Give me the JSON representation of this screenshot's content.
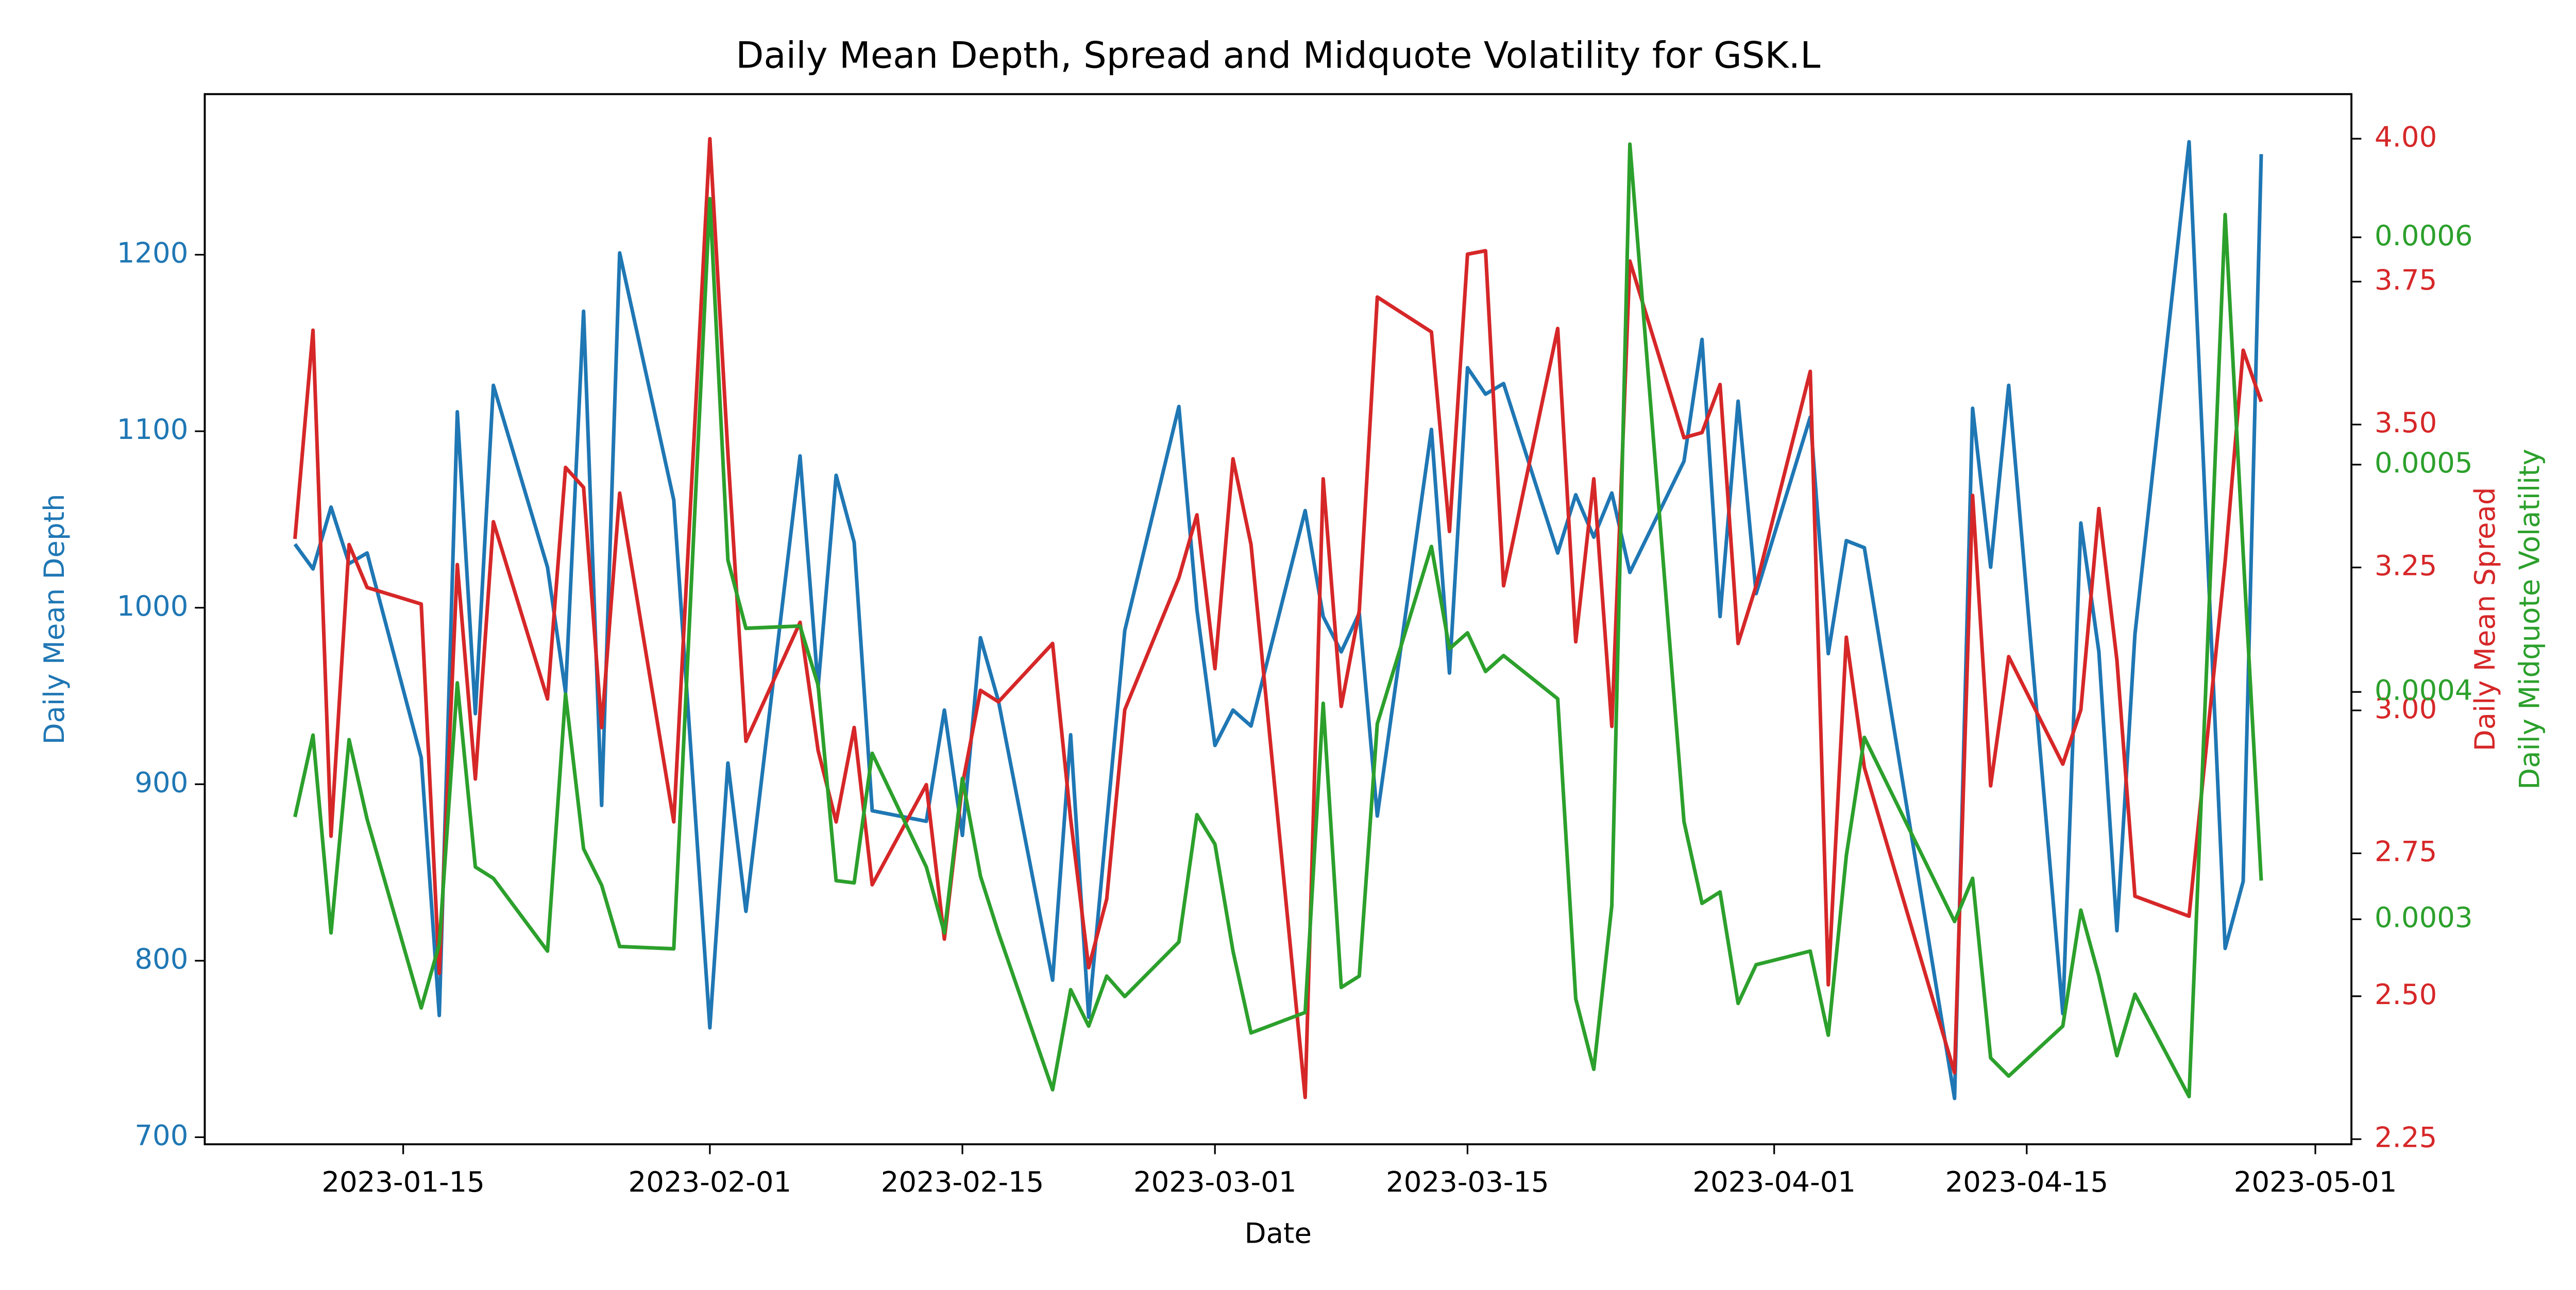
{
  "chart_data": {
    "type": "line",
    "title": "Daily Mean Depth, Spread and Midquote Volatility for GSK.L",
    "xlabel": "Date",
    "ylabel": "Daily Mean Depth",
    "y2label": "Daily Mean Spread",
    "y3label": "Daily Midquote Volatility",
    "x": [
      "2023-01-09",
      "2023-01-10",
      "2023-01-11",
      "2023-01-12",
      "2023-01-13",
      "2023-01-16",
      "2023-01-17",
      "2023-01-18",
      "2023-01-19",
      "2023-01-20",
      "2023-01-23",
      "2023-01-24",
      "2023-01-25",
      "2023-01-26",
      "2023-01-27",
      "2023-01-30",
      "2023-02-01",
      "2023-02-02",
      "2023-02-03",
      "2023-02-06",
      "2023-02-07",
      "2023-02-08",
      "2023-02-09",
      "2023-02-10",
      "2023-02-13",
      "2023-02-14",
      "2023-02-15",
      "2023-02-16",
      "2023-02-17",
      "2023-02-20",
      "2023-02-21",
      "2023-02-22",
      "2023-02-23",
      "2023-02-24",
      "2023-02-27",
      "2023-02-28",
      "2023-03-01",
      "2023-03-02",
      "2023-03-03",
      "2023-03-06",
      "2023-03-07",
      "2023-03-08",
      "2023-03-09",
      "2023-03-10",
      "2023-03-13",
      "2023-03-14",
      "2023-03-15",
      "2023-03-16",
      "2023-03-17",
      "2023-03-20",
      "2023-03-21",
      "2023-03-22",
      "2023-03-23",
      "2023-03-24",
      "2023-03-27",
      "2023-03-28",
      "2023-03-29",
      "2023-03-30",
      "2023-03-31",
      "2023-04-03",
      "2023-04-04",
      "2023-04-05",
      "2023-04-06",
      "2023-04-11",
      "2023-04-12",
      "2023-04-13",
      "2023-04-14",
      "2023-04-17",
      "2023-04-18",
      "2023-04-19",
      "2023-04-20",
      "2023-04-21",
      "2023-04-24",
      "2023-04-26",
      "2023-04-27",
      "2023-04-28"
    ],
    "xlim": [
      "2023-01-04",
      "2023-05-03"
    ],
    "xticks": [
      "2023-01-15",
      "2023-02-01",
      "2023-02-15",
      "2023-03-01",
      "2023-03-15",
      "2023-04-01",
      "2023-04-15",
      "2023-05-01"
    ],
    "ylim": [
      696,
      1291
    ],
    "yticks": [
      700,
      800,
      900,
      1000,
      1100,
      1200
    ],
    "y2lim": [
      2.241,
      4.078
    ],
    "y2ticks": [
      {
        "value": 2.25,
        "label": "2.25"
      },
      {
        "value": 2.5,
        "label": "2.50"
      },
      {
        "value": 2.75,
        "label": "2.75"
      },
      {
        "value": 3,
        "label": "3.00"
      },
      {
        "value": 3.25,
        "label": "3.25"
      },
      {
        "value": 3.5,
        "label": "3.50"
      },
      {
        "value": 3.75,
        "label": "3.75"
      },
      {
        "value": 4,
        "label": "4.00"
      }
    ],
    "y3lim": [
      0.000201,
      0.000663
    ],
    "y3ticks": [
      0.0003,
      0.0004,
      0.0005,
      0.0006
    ],
    "series": [
      {
        "name": "Daily Mean Depth",
        "color": "#1f77b4",
        "axis": "y",
        "values": [
          1036,
          1022,
          1057,
          1025,
          1031,
          915,
          769,
          1111,
          940,
          1126,
          1023,
          952,
          1168,
          888,
          1201,
          1061,
          762,
          912,
          828,
          1086,
          955,
          1075,
          1037,
          885,
          879,
          942,
          871,
          983,
          947,
          789,
          928,
          768,
          878,
          987,
          1114,
          999,
          922,
          942,
          933,
          1055,
          995,
          975,
          997,
          882,
          1101,
          963,
          1136,
          1121,
          1127,
          1031,
          1064,
          1040,
          1065,
          1020,
          1083,
          1152,
          995,
          1117,
          1008,
          1108,
          974,
          1038,
          1034,
          722,
          1113,
          1023,
          1126,
          770,
          1048,
          975,
          817,
          985,
          1264,
          807,
          845,
          1257
        ]
      },
      {
        "name": "Daily Mean Spread",
        "color": "#d62728",
        "axis": "y2",
        "values": [
          3.3,
          3.665,
          2.78,
          3.29,
          3.215,
          3.186,
          2.54,
          3.255,
          2.88,
          3.33,
          3.02,
          3.425,
          3.39,
          2.97,
          3.38,
          2.805,
          4.0,
          3.45,
          2.946,
          3.154,
          2.93,
          2.805,
          2.97,
          2.695,
          2.87,
          2.6,
          2.87,
          3.035,
          3.015,
          3.117,
          2.81,
          2.55,
          2.67,
          3.001,
          3.232,
          3.342,
          3.073,
          3.44,
          3.29,
          2.323,
          3.405,
          3.007,
          3.174,
          3.723,
          3.662,
          3.313,
          3.798,
          3.804,
          3.218,
          3.668,
          3.12,
          3.405,
          2.972,
          3.786,
          3.477,
          3.486,
          3.57,
          3.117,
          3.218,
          3.593,
          2.52,
          3.128,
          2.9,
          2.366,
          3.376,
          2.868,
          3.094,
          2.906,
          3.001,
          3.353,
          3.088,
          2.675,
          2.64,
          3.26,
          3.63,
          3.54
        ]
      },
      {
        "name": "Daily Midquote Volatility",
        "color": "#2ca02c",
        "axis": "y3",
        "values": [
          0.000345,
          0.000381,
          0.000294,
          0.000379,
          0.000344,
          0.000261,
          0.000289,
          0.000404,
          0.000323,
          0.000318,
          0.000286,
          0.000399,
          0.000331,
          0.000315,
          0.000288,
          0.000287,
          0.000617,
          0.000458,
          0.000428,
          0.000429,
          0.000403,
          0.000317,
          0.000316,
          0.000373,
          0.000323,
          0.000294,
          0.000362,
          0.000319,
          0.000294,
          0.000225,
          0.000269,
          0.000253,
          0.000275,
          0.000266,
          0.00029,
          0.000346,
          0.000333,
          0.000286,
          0.00025,
          0.000259,
          0.000395,
          0.00027,
          0.000275,
          0.000386,
          0.000464,
          0.000419,
          0.000426,
          0.000409,
          0.000416,
          0.000397,
          0.000265,
          0.000234,
          0.000306,
          0.000641,
          0.000343,
          0.000307,
          0.000312,
          0.000263,
          0.00028,
          0.000286,
          0.000249,
          0.000328,
          0.00038,
          0.000299,
          0.000318,
          0.000239,
          0.000231,
          0.000253,
          0.000304,
          0.000275,
          0.00024,
          0.000267,
          0.000222,
          0.00061,
          0.000461,
          0.000317
        ]
      }
    ]
  }
}
